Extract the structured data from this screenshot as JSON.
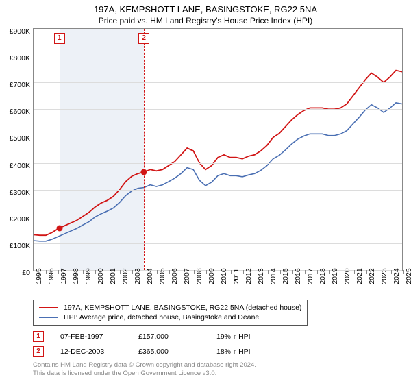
{
  "title": "197A, KEMPSHOTT LANE, BASINGSTOKE, RG22 5NA",
  "subtitle": "Price paid vs. HM Land Registry's House Price Index (HPI)",
  "chart": {
    "type": "line",
    "background_color": "#ffffff",
    "grid_color": "#dcdcdc",
    "band_color": "#e9eef5",
    "axis_color": "#888888",
    "y": {
      "min": 0,
      "max": 900000,
      "step": 100000,
      "labels": [
        "£0",
        "£100K",
        "£200K",
        "£300K",
        "£400K",
        "£500K",
        "£600K",
        "£700K",
        "£800K",
        "£900K"
      ],
      "fontsize": 10.5
    },
    "x": {
      "min": 1995,
      "max": 2025,
      "step": 1,
      "labels": [
        "1995",
        "1996",
        "1997",
        "1998",
        "1999",
        "2000",
        "2001",
        "2002",
        "2003",
        "2004",
        "2005",
        "2006",
        "2007",
        "2008",
        "2009",
        "2010",
        "2011",
        "2012",
        "2013",
        "2014",
        "2015",
        "2016",
        "2017",
        "2018",
        "2019",
        "2020",
        "2021",
        "2022",
        "2023",
        "2024",
        "2025"
      ],
      "fontsize": 10.5
    },
    "series": [
      {
        "name": "197A, KEMPSHOTT LANE, BASINGSTOKE, RG22 5NA (detached house)",
        "color": "#d11515",
        "width": 1.8,
        "data": [
          [
            1995.0,
            132000
          ],
          [
            1995.5,
            130000
          ],
          [
            1996.0,
            130000
          ],
          [
            1996.5,
            140000
          ],
          [
            1997.1,
            157000
          ],
          [
            1997.5,
            165000
          ],
          [
            1998.0,
            175000
          ],
          [
            1998.5,
            185000
          ],
          [
            1999.0,
            200000
          ],
          [
            1999.5,
            215000
          ],
          [
            2000.0,
            235000
          ],
          [
            2000.5,
            250000
          ],
          [
            2001.0,
            260000
          ],
          [
            2001.5,
            275000
          ],
          [
            2002.0,
            300000
          ],
          [
            2002.5,
            330000
          ],
          [
            2003.0,
            350000
          ],
          [
            2003.5,
            360000
          ],
          [
            2003.95,
            365000
          ],
          [
            2004.5,
            375000
          ],
          [
            2005.0,
            370000
          ],
          [
            2005.5,
            375000
          ],
          [
            2006.0,
            390000
          ],
          [
            2006.5,
            405000
          ],
          [
            2007.0,
            430000
          ],
          [
            2007.5,
            455000
          ],
          [
            2008.0,
            445000
          ],
          [
            2008.5,
            400000
          ],
          [
            2009.0,
            375000
          ],
          [
            2009.5,
            390000
          ],
          [
            2010.0,
            420000
          ],
          [
            2010.5,
            430000
          ],
          [
            2011.0,
            420000
          ],
          [
            2011.5,
            420000
          ],
          [
            2012.0,
            415000
          ],
          [
            2012.5,
            425000
          ],
          [
            2013.0,
            430000
          ],
          [
            2013.5,
            445000
          ],
          [
            2014.0,
            465000
          ],
          [
            2014.5,
            495000
          ],
          [
            2015.0,
            510000
          ],
          [
            2015.5,
            535000
          ],
          [
            2016.0,
            560000
          ],
          [
            2016.5,
            580000
          ],
          [
            2017.0,
            595000
          ],
          [
            2017.5,
            605000
          ],
          [
            2018.0,
            605000
          ],
          [
            2018.5,
            605000
          ],
          [
            2019.0,
            600000
          ],
          [
            2019.5,
            600000
          ],
          [
            2020.0,
            605000
          ],
          [
            2020.5,
            620000
          ],
          [
            2021.0,
            650000
          ],
          [
            2021.5,
            680000
          ],
          [
            2022.0,
            710000
          ],
          [
            2022.5,
            735000
          ],
          [
            2023.0,
            720000
          ],
          [
            2023.5,
            700000
          ],
          [
            2024.0,
            720000
          ],
          [
            2024.5,
            745000
          ],
          [
            2025.0,
            740000
          ]
        ]
      },
      {
        "name": "HPI: Average price, detached house, Basingstoke and Deane",
        "color": "#4a6fb3",
        "width": 1.6,
        "data": [
          [
            1995.0,
            110000
          ],
          [
            1995.5,
            108000
          ],
          [
            1996.0,
            108000
          ],
          [
            1996.5,
            115000
          ],
          [
            1997.0,
            125000
          ],
          [
            1997.5,
            135000
          ],
          [
            1998.0,
            145000
          ],
          [
            1998.5,
            155000
          ],
          [
            1999.0,
            168000
          ],
          [
            1999.5,
            180000
          ],
          [
            2000.0,
            198000
          ],
          [
            2000.5,
            210000
          ],
          [
            2001.0,
            220000
          ],
          [
            2001.5,
            232000
          ],
          [
            2002.0,
            252000
          ],
          [
            2002.5,
            278000
          ],
          [
            2003.0,
            295000
          ],
          [
            2003.5,
            305000
          ],
          [
            2004.0,
            308000
          ],
          [
            2004.5,
            318000
          ],
          [
            2005.0,
            312000
          ],
          [
            2005.5,
            318000
          ],
          [
            2006.0,
            330000
          ],
          [
            2006.5,
            343000
          ],
          [
            2007.0,
            360000
          ],
          [
            2007.5,
            382000
          ],
          [
            2008.0,
            375000
          ],
          [
            2008.5,
            335000
          ],
          [
            2009.0,
            315000
          ],
          [
            2009.5,
            328000
          ],
          [
            2010.0,
            352000
          ],
          [
            2010.5,
            360000
          ],
          [
            2011.0,
            352000
          ],
          [
            2011.5,
            352000
          ],
          [
            2012.0,
            348000
          ],
          [
            2012.5,
            355000
          ],
          [
            2013.0,
            360000
          ],
          [
            2013.5,
            372000
          ],
          [
            2014.0,
            390000
          ],
          [
            2014.5,
            415000
          ],
          [
            2015.0,
            428000
          ],
          [
            2015.5,
            448000
          ],
          [
            2016.0,
            470000
          ],
          [
            2016.5,
            488000
          ],
          [
            2017.0,
            500000
          ],
          [
            2017.5,
            508000
          ],
          [
            2018.0,
            508000
          ],
          [
            2018.5,
            508000
          ],
          [
            2019.0,
            502000
          ],
          [
            2019.5,
            502000
          ],
          [
            2020.0,
            508000
          ],
          [
            2020.5,
            520000
          ],
          [
            2021.0,
            545000
          ],
          [
            2021.5,
            570000
          ],
          [
            2022.0,
            597000
          ],
          [
            2022.5,
            617000
          ],
          [
            2023.0,
            605000
          ],
          [
            2023.5,
            588000
          ],
          [
            2024.0,
            604000
          ],
          [
            2024.5,
            624000
          ],
          [
            2025.0,
            620000
          ]
        ]
      }
    ],
    "sales_band": {
      "start": 1997.1,
      "end": 2003.95
    },
    "markers": [
      {
        "label": "1",
        "x": 1997.1,
        "y": 157000
      },
      {
        "label": "2",
        "x": 2003.95,
        "y": 365000
      }
    ]
  },
  "legend": {
    "rows": [
      {
        "color": "#d11515",
        "label": "197A, KEMPSHOTT LANE, BASINGSTOKE, RG22 5NA (detached house)"
      },
      {
        "color": "#4a6fb3",
        "label": "HPI: Average price, detached house, Basingstoke and Deane"
      }
    ]
  },
  "sales": [
    {
      "marker": "1",
      "date": "07-FEB-1997",
      "price": "£157,000",
      "delta": "19% ↑ HPI"
    },
    {
      "marker": "2",
      "date": "12-DEC-2003",
      "price": "£365,000",
      "delta": "18% ↑ HPI"
    }
  ],
  "footer": {
    "line1": "Contains HM Land Registry data © Crown copyright and database right 2024.",
    "line2": "This data is licensed under the Open Government Licence v3.0."
  }
}
